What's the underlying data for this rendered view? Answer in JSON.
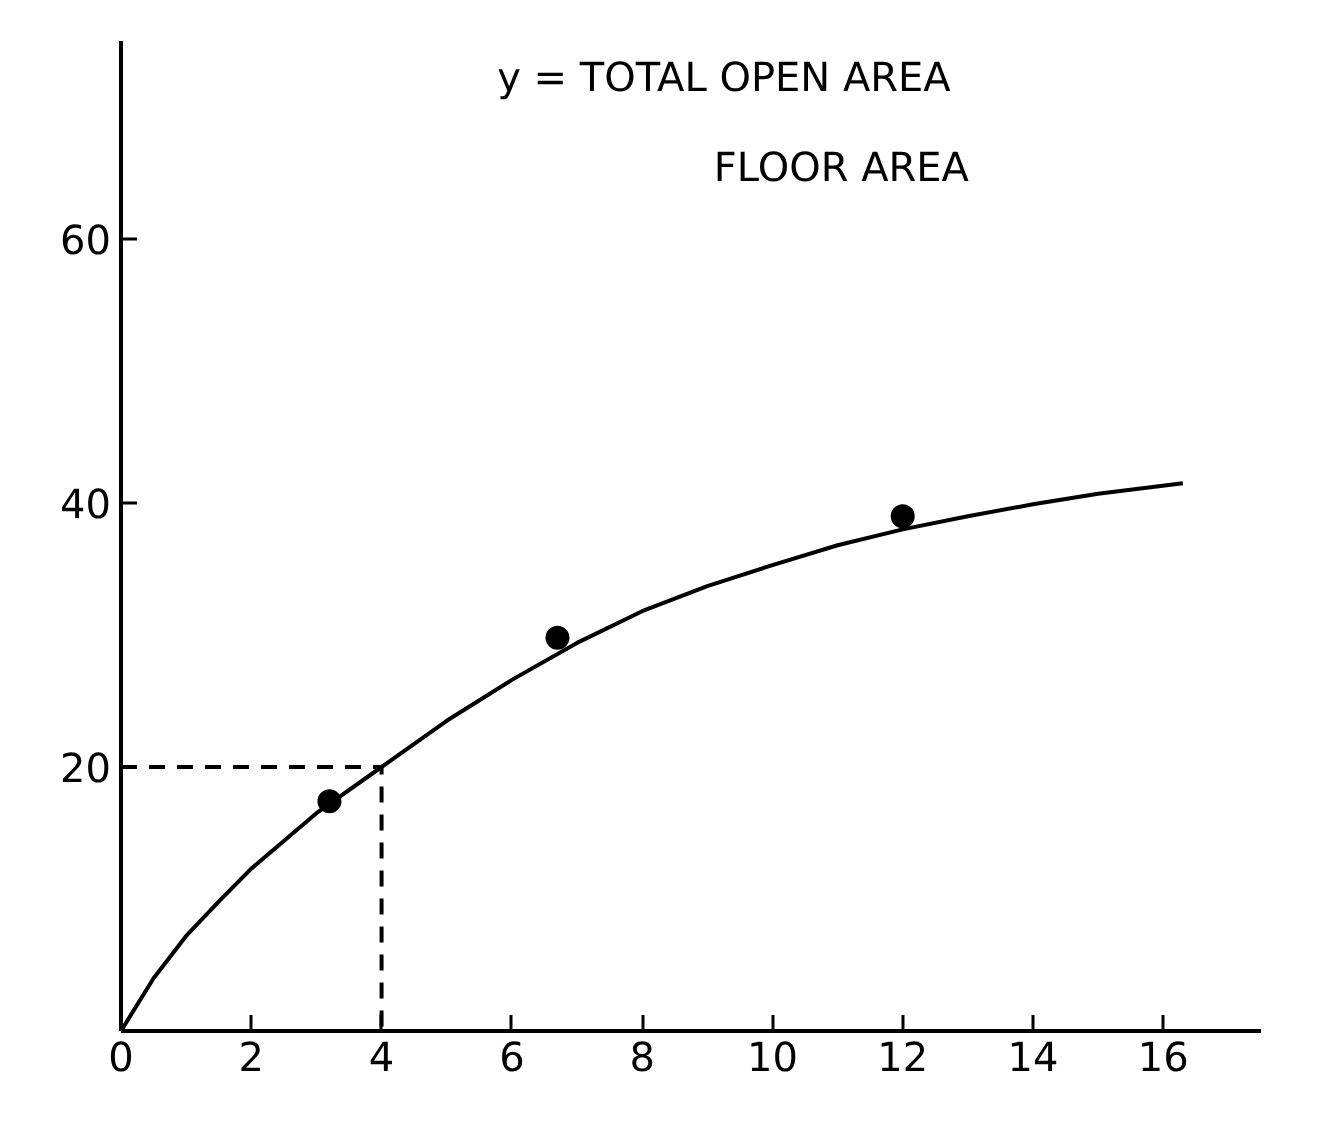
{
  "chart_data": {
    "type": "line",
    "title": "y = TOTAL OPEN AREA",
    "subtitle": "FLOOR AREA",
    "xlim": [
      0,
      17.5
    ],
    "xticks": [
      0,
      2,
      4,
      6,
      8,
      10,
      12,
      14,
      16
    ],
    "ylim": [
      0,
      75
    ],
    "yticks": [
      20,
      40,
      60
    ],
    "grid": false,
    "series": [
      {
        "color": "#000000",
        "line_style": "solid",
        "marker": "none",
        "x": [
          0,
          0.5,
          1,
          1.5,
          2,
          3,
          4,
          5,
          6,
          7,
          8,
          9,
          10,
          11,
          12,
          13,
          14,
          15,
          16.3
        ],
        "values": [
          0,
          4,
          7.2,
          9.8,
          12.3,
          16.5,
          20,
          23.5,
          26.6,
          29.4,
          31.8,
          33.7,
          35.3,
          36.8,
          38,
          39,
          39.9,
          40.7,
          41.5
        ]
      },
      {
        "type": "scatter",
        "color": "#000000",
        "marker": "circle",
        "x": [
          3.2,
          6.7,
          12
        ],
        "values": [
          17.4,
          29.8,
          39
        ]
      },
      {
        "type": "line",
        "color": "#000000",
        "line_style": "dashed",
        "marker": "none",
        "x": [
          0,
          4,
          4
        ],
        "values": [
          20,
          20,
          0
        ]
      }
    ]
  }
}
